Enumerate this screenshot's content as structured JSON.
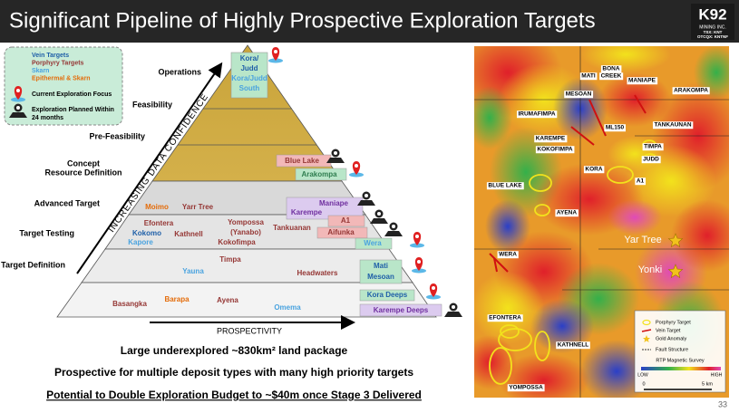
{
  "header": {
    "title": "Significant Pipeline of Highly Prospective Exploration Targets",
    "logo": {
      "name": "K92",
      "company": "MINING INC.",
      "tickers": [
        "TSX: KNT",
        "OTCQX: KNTNF"
      ]
    }
  },
  "legend": {
    "target_types": [
      "Vein Targets",
      "Porphyry Targets",
      "Skarn",
      "Epithermal & Skarn"
    ],
    "icons": [
      "Current Exploration Focus",
      [
        "Exploration Planned Within",
        "24 months"
      ]
    ]
  },
  "pyramid": {
    "stages": [
      "Operations",
      "Feasibility",
      "Pre-Feasibility",
      [
        "Concept",
        "Resource Definition"
      ],
      "Advanced Target",
      "Target Testing",
      "Target Definition"
    ],
    "y_axis": "INCREASING DATA CONFIDENCE",
    "x_axis": "PROSPECTIVITY",
    "operations_box": [
      "Kora/",
      "Judd",
      "Kora/Judd",
      "South"
    ],
    "targets": [
      "Blue Lake",
      "Arakompa",
      "Moimo",
      "Yarr Tree",
      "Maniape",
      "Karempe",
      "Efontera",
      "Kokomo",
      "Kapore",
      "Kathnell",
      [
        "Yompossa",
        "(Yanabo)"
      ],
      "Kokofimpa",
      "Tankuanan",
      "A1",
      "Aifunka",
      "Wera",
      "Timpa",
      "Yauna",
      "Headwaters",
      "Mati",
      "Mesoan",
      "Basangka",
      "Barapa",
      "Ayena",
      "Omema",
      "Kora Deeps",
      "Karempe Deeps"
    ]
  },
  "summary": [
    "Large underexplored ~830km² land package",
    "Prospective for multiple deposit types with many high priority targets",
    "Potential to Double Exploration Budget to ~$40m once Stage 3 Delivered"
  ],
  "map": {
    "labels": [
      "MATI",
      [
        "BONA",
        "CREEK"
      ],
      "MANIAPE",
      "MESOAN",
      "ARAKOMPA",
      "IRUMAFIMPA",
      "ML150",
      "TANKAUNAN",
      "KAREMPE",
      "KOKOFIMPA",
      "TIMPA",
      "JUDD",
      "KORA",
      "A1",
      "BLUE LAKE",
      "AYENA",
      "Yar Tree",
      "Yonki",
      "WERA",
      "EFONTERA",
      "KATHNELL",
      "YOMPOSSA"
    ],
    "legend": {
      "items": [
        "Porphyry Target",
        "Vein Target",
        "Gold Anomaly",
        "Fault Structure"
      ],
      "survey": "RTP Magnetic Survey",
      "low": "LOW",
      "high": "HIGH",
      "scale": [
        "0",
        "5 km"
      ]
    }
  },
  "page_number": "33"
}
